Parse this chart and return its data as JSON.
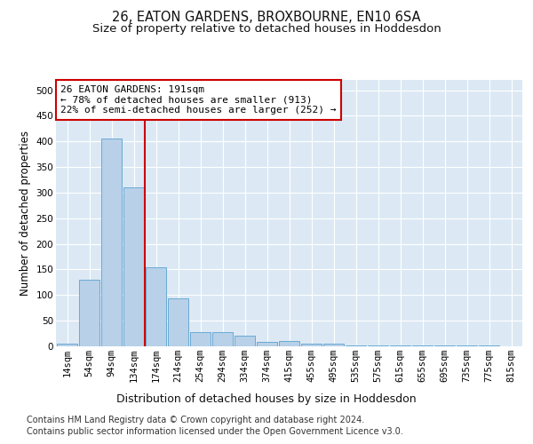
{
  "title": "26, EATON GARDENS, BROXBOURNE, EN10 6SA",
  "subtitle": "Size of property relative to detached houses in Hoddesdon",
  "xlabel": "Distribution of detached houses by size in Hoddesdon",
  "ylabel": "Number of detached properties",
  "bin_labels": [
    "14sqm",
    "54sqm",
    "94sqm",
    "134sqm",
    "174sqm",
    "214sqm",
    "254sqm",
    "294sqm",
    "334sqm",
    "374sqm",
    "415sqm",
    "455sqm",
    "495sqm",
    "535sqm",
    "575sqm",
    "615sqm",
    "655sqm",
    "695sqm",
    "735sqm",
    "775sqm",
    "815sqm"
  ],
  "bar_values": [
    5,
    130,
    405,
    310,
    155,
    93,
    28,
    28,
    20,
    9,
    11,
    5,
    5,
    1,
    1,
    1,
    1,
    1,
    2,
    1,
    0
  ],
  "bar_color": "#b8d0e8",
  "bar_edgecolor": "#6aaad4",
  "vline_color": "#cc0000",
  "vline_pos": 3.5,
  "annotation_text": "26 EATON GARDENS: 191sqm\n← 78% of detached houses are smaller (913)\n22% of semi-detached houses are larger (252) →",
  "annotation_box_facecolor": "#ffffff",
  "annotation_box_edgecolor": "#cc0000",
  "ylim": [
    0,
    520
  ],
  "yticks": [
    0,
    50,
    100,
    150,
    200,
    250,
    300,
    350,
    400,
    450,
    500
  ],
  "background_color": "#dce9f5",
  "fig_bg_color": "#ffffff",
  "grid_color": "#ffffff",
  "title_fontsize": 10.5,
  "subtitle_fontsize": 9.5,
  "xlabel_fontsize": 9,
  "ylabel_fontsize": 8.5,
  "tick_fontsize": 7.5,
  "annotation_fontsize": 8,
  "footer_fontsize": 7,
  "footer_line1": "Contains HM Land Registry data © Crown copyright and database right 2024.",
  "footer_line2": "Contains public sector information licensed under the Open Government Licence v3.0."
}
